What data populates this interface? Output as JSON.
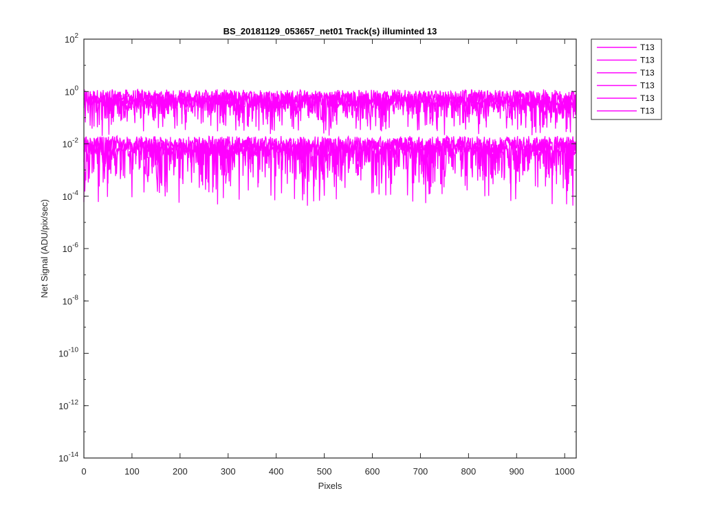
{
  "chart_data": {
    "type": "line",
    "title": "BS_20181129_053657_net01  Track(s) illuminted 13",
    "xlabel": "Pixels",
    "ylabel": "Net Signal (ADU/pix/sec)",
    "xlim": [
      0,
      1024
    ],
    "ylim": [
      1e-14,
      100
    ],
    "yscale": "log",
    "xticks": [
      0,
      100,
      200,
      300,
      400,
      500,
      600,
      700,
      800,
      900,
      1000
    ],
    "yticks": [
      {
        "base": "10",
        "exp": "2",
        "value": 100
      },
      {
        "base": "10",
        "exp": "0",
        "value": 1
      },
      {
        "base": "10",
        "exp": "-2",
        "value": 0.01
      },
      {
        "base": "10",
        "exp": "-4",
        "value": 0.0001
      },
      {
        "base": "10",
        "exp": "-6",
        "value": 1e-06
      },
      {
        "base": "10",
        "exp": "-8",
        "value": 1e-08
      },
      {
        "base": "10",
        "exp": "-10",
        "value": 1e-10
      },
      {
        "base": "10",
        "exp": "-12",
        "value": 1e-12
      },
      {
        "base": "10",
        "exp": "-14",
        "value": 1e-14
      }
    ],
    "grid": false,
    "legend_position": "outside-top-right",
    "color": "#ff00ff",
    "series": [
      {
        "name": "T13",
        "x_start": 0,
        "x_end": 1023,
        "typical_level": 0.6,
        "min_level": 0.03
      },
      {
        "name": "T13",
        "x_start": 0,
        "x_end": 1023,
        "typical_level": 0.4,
        "min_level": 0.02
      },
      {
        "name": "T13",
        "x_start": 0,
        "x_end": 1023,
        "typical_level": 0.5,
        "min_level": 0.03
      },
      {
        "name": "T13",
        "x_start": 0,
        "x_end": 1023,
        "typical_level": 0.008,
        "min_level": 0.0001
      },
      {
        "name": "T13",
        "x_start": 0,
        "x_end": 1023,
        "typical_level": 0.006,
        "min_level": 4e-05
      },
      {
        "name": "T13",
        "x_start": 0,
        "x_end": 1023,
        "typical_level": 0.01,
        "min_level": 0.0002
      }
    ]
  }
}
